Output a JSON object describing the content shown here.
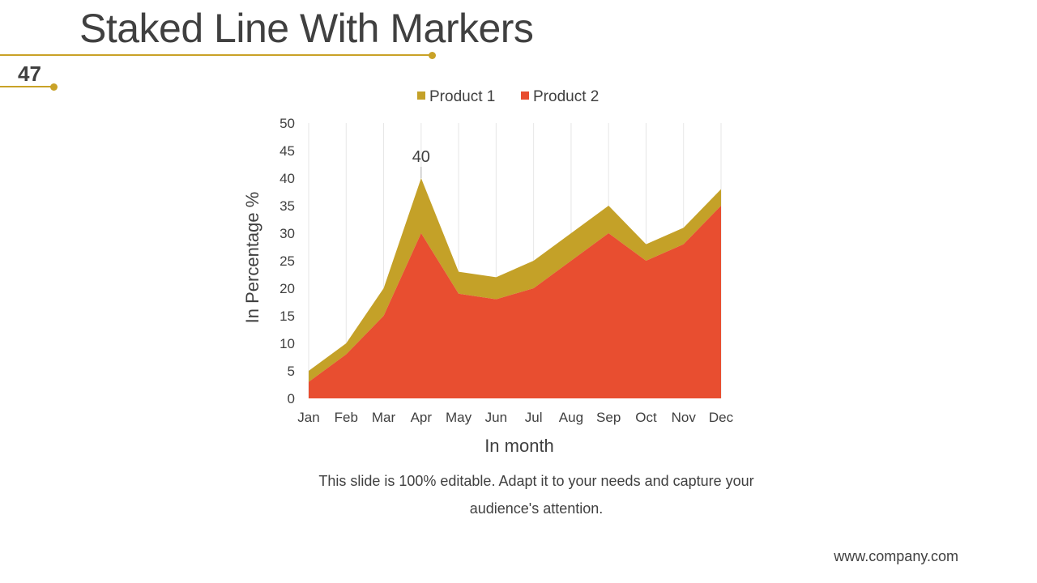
{
  "slide": {
    "title": "Staked Line With Markers",
    "number": "47",
    "caption_line1": "This slide is 100% editable. Adapt it to your needs and capture your",
    "caption_line2": "audience's attention.",
    "footer": "www.company.com"
  },
  "colors": {
    "accent": "#c9a227",
    "product1": "#c4a128",
    "product2": "#e84e30",
    "text": "#404040",
    "grid": "#e6e6e6"
  },
  "chart_data": {
    "type": "area",
    "stacked": true,
    "categories": [
      "Jan",
      "Feb",
      "Mar",
      "Apr",
      "May",
      "Jun",
      "Jul",
      "Aug",
      "Sep",
      "Oct",
      "Nov",
      "Dec"
    ],
    "series": [
      {
        "name": "Product 1",
        "values": [
          2,
          2,
          5,
          10,
          4,
          4,
          5,
          5,
          5,
          3,
          3,
          3
        ]
      },
      {
        "name": "Product 2",
        "values": [
          3,
          8,
          15,
          30,
          19,
          18,
          20,
          25,
          30,
          25,
          28,
          35
        ]
      }
    ],
    "xlabel": "In month",
    "ylabel": "In Percentage %",
    "ylim": [
      0,
      50
    ],
    "yticks": [
      "0",
      "5",
      "10",
      "15",
      "20",
      "25",
      "30",
      "35",
      "40",
      "45",
      "50"
    ],
    "grid": "vertical",
    "legend": "top",
    "annotations": [
      {
        "category": "Apr",
        "label": "40"
      }
    ]
  }
}
